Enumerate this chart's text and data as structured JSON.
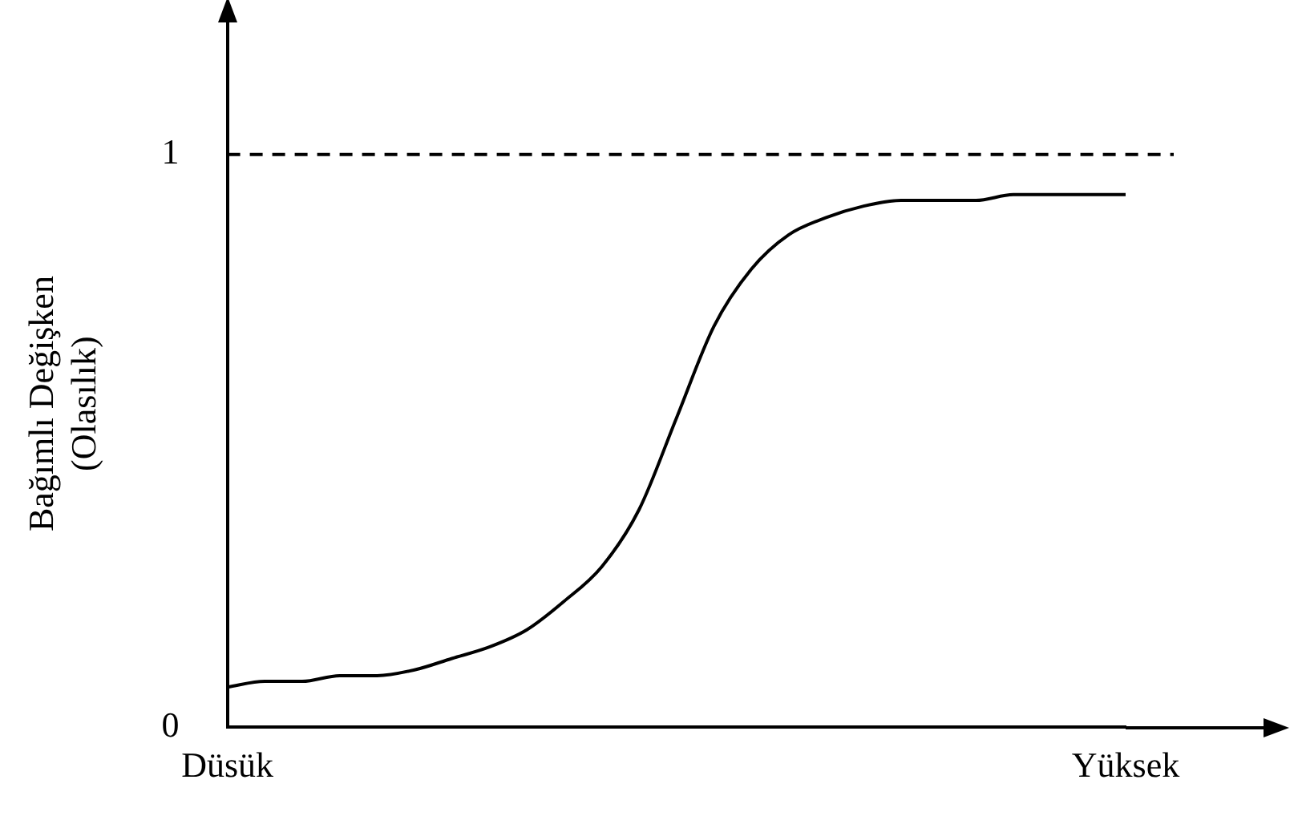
{
  "chart_data": {
    "type": "line",
    "ylabel": "Bağımlı Değişken\n(Olasılık)",
    "categories": [
      "Düsük",
      null,
      null,
      null,
      null,
      null,
      null,
      null,
      null,
      null,
      null,
      null,
      null,
      null,
      null,
      null,
      null,
      null,
      null,
      null,
      null,
      null,
      null,
      null,
      "Yüksek"
    ],
    "series": [
      {
        "color": "#000000",
        "values": [
          0.07,
          0.08,
          0.08,
          0.09,
          0.09,
          0.1,
          0.12,
          0.14,
          0.17,
          0.22,
          0.28,
          0.38,
          0.54,
          0.7,
          0.8,
          0.86,
          0.89,
          0.91,
          0.92,
          0.92,
          0.92,
          0.93,
          0.93,
          0.93,
          0.93
        ]
      }
    ],
    "ylim": [
      0,
      1.13
    ],
    "yticks": [
      0,
      1
    ],
    "ref_lines": [
      {
        "axis": "y",
        "value": 1,
        "line_style": "dashed",
        "color": "#000000"
      }
    ],
    "grid": false,
    "legend": false,
    "marker": "none",
    "line_style": "solid"
  }
}
